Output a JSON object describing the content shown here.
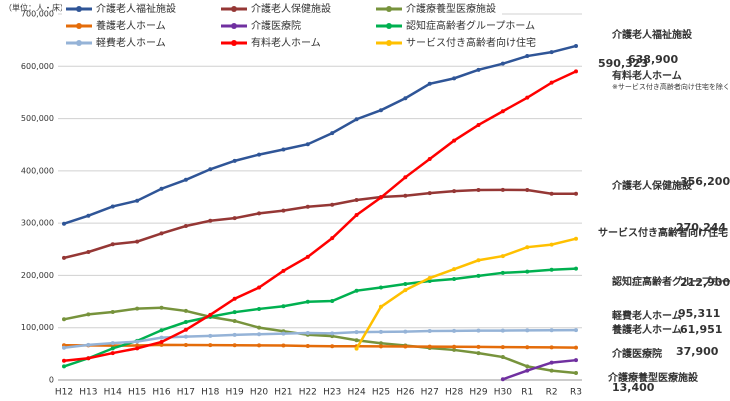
{
  "chart_data": {
    "type": "line",
    "unit_label": "（単位：人・床）",
    "note": "※サービス付き高齢者向け住宅を除く",
    "categories": [
      "H12",
      "H13",
      "H14",
      "H15",
      "H16",
      "H17",
      "H18",
      "H19",
      "H20",
      "H21",
      "H22",
      "H23",
      "H24",
      "H25",
      "H26",
      "H27",
      "H28",
      "H29",
      "H30",
      "R1",
      "R2",
      "R3"
    ],
    "ylim": [
      0,
      700000
    ],
    "yticks": [
      0,
      {
        "value": 100000,
        "label": "100,000"
      },
      {
        "value": 200000,
        "label": "200,000"
      },
      {
        "value": 300000,
        "label": "300,000"
      },
      {
        "value": 400000,
        "label": "400,000"
      },
      {
        "value": 500000,
        "label": "500,000"
      },
      {
        "value": 600000,
        "label": "600,000"
      },
      {
        "value": 700000,
        "label": "700,000"
      }
    ],
    "grid": true,
    "series": [
      {
        "name": "介護老人福祉施設",
        "color": "#2f5597",
        "end_value_label": "638,900",
        "values": [
          298912,
          314192,
          331900,
          342900,
          365800,
          382900,
          403000,
          419100,
          431100,
          440900,
          450900,
          472200,
          498700,
          516000,
          538900,
          566600,
          576900,
          593200,
          605000,
          619600,
          627000,
          638900
        ]
      },
      {
        "name": "介護老人保健施設",
        "color": "#953735",
        "end_value_label": "356,200",
        "values": [
          233536,
          244827,
          259600,
          264700,
          280400,
          294500,
          304500,
          309500,
          318600,
          323900,
          331400,
          335200,
          344300,
          349975,
          352300,
          357500,
          361300,
          363400,
          363600,
          363400,
          356300,
          356200
        ]
      },
      {
        "name": "介護療養型医療施設",
        "color": "#77933c",
        "end_value_label": "13,400",
        "values": [
          116111,
          125422,
          130100,
          136500,
          138200,
          132100,
          120800,
          112900,
          100200,
          93200,
          86500,
          84000,
          76000,
          70300,
          66100,
          61300,
          57500,
          51400,
          43900,
          26000,
          18000,
          13400
        ]
      },
      {
        "name": "養護老人ホーム",
        "color": "#e46c0a",
        "end_value_label": "61,951",
        "values": [
          66490,
          66112,
          65660,
          65960,
          67133,
          66837,
          66667,
          66375,
          66239,
          65947,
          65113,
          64630,
          64500,
          64300,
          64100,
          63900,
          63600,
          63300,
          62900,
          62600,
          62300,
          61951
        ]
      },
      {
        "name": "介護医療院",
        "color": "#7030a0",
        "end_value_label": "37,900",
        "values": [
          null,
          null,
          null,
          null,
          null,
          null,
          null,
          null,
          null,
          null,
          null,
          null,
          null,
          null,
          null,
          null,
          null,
          null,
          1400,
          18000,
          33300,
          37900
        ]
      },
      {
        "name": "認知症高齢者グループホーム",
        "color": "#00b050",
        "end_value_label": "212,900",
        "values": [
          26000,
          41582,
          60500,
          74900,
          95100,
          110900,
          120900,
          129700,
          135900,
          141000,
          149700,
          151000,
          170800,
          176900,
          183600,
          189300,
          193100,
          199100,
          205000,
          207200,
          210800,
          212900
        ]
      },
      {
        "name": "軽費老人ホーム",
        "color": "#95b3d7",
        "end_value_label": "95,311",
        "values": [
          61732,
          67166,
          70564,
          73500,
          80952,
          83000,
          84500,
          86359,
          87600,
          88736,
          89800,
          89286,
          91474,
          92000,
          92478,
          93712,
          93864,
          94474,
          94491,
          94944,
          95073,
          95311
        ]
      },
      {
        "name": "有料老人ホーム",
        "color": "#ff0000",
        "end_value_label": "590,323",
        "values": [
          36855,
          41582,
          51500,
          60500,
          72666,
          96000,
          124610,
          155432,
          176935,
          208827,
          235526,
          271256,
          315678,
          349000,
          387666,
          422612,
          457918,
          487774,
          514017,
          539995,
          568650,
          590323
        ]
      },
      {
        "name": "サービス付き高齢者向け住宅",
        "color": "#ffc000",
        "end_value_label": "270,244",
        "values": [
          null,
          null,
          null,
          null,
          null,
          null,
          null,
          null,
          null,
          null,
          null,
          null,
          60000,
          140000,
          172000,
          195000,
          212000,
          229000,
          237000,
          254000,
          259000,
          270244
        ]
      }
    ]
  }
}
